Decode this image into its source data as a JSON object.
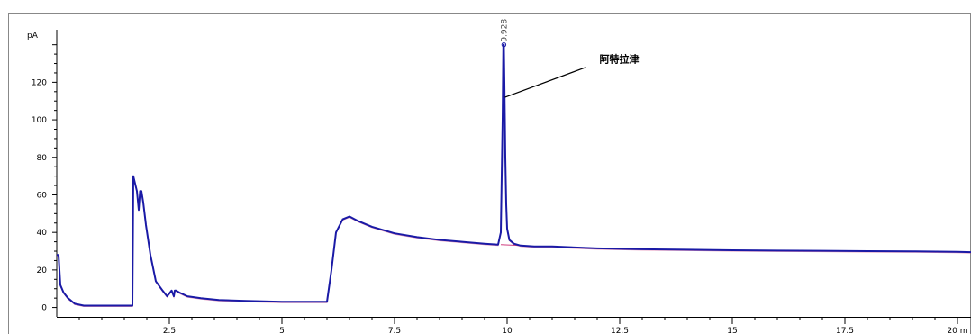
{
  "chart_data": {
    "type": "line",
    "ylabel": "pA",
    "xunit": "m",
    "xlim": [
      0,
      20.3
    ],
    "ylim": [
      -5,
      148
    ],
    "grid": false,
    "y_ticks": [
      0,
      20,
      40,
      60,
      80,
      100,
      120
    ],
    "y_tick_labels": [
      "0",
      "20",
      "40",
      "60",
      "80",
      "100",
      "120"
    ],
    "x_ticks": [
      2.5,
      5,
      7.5,
      10,
      12.5,
      15,
      17.5,
      20
    ],
    "x_tick_labels": [
      "2.5",
      "5",
      "7.5",
      "10",
      "12.5",
      "15",
      "17.5",
      "20"
    ],
    "peak_label": "9.928",
    "annotation": "阿特拉津",
    "colors": {
      "signal": "#1a1aa6",
      "baseline": "#d04080",
      "axis": "#000000",
      "frame": "#888888"
    },
    "series": [
      {
        "x": [
          0.0,
          0.04,
          0.08,
          0.15,
          0.25,
          0.4,
          0.6,
          1.0,
          1.5,
          1.68,
          1.7,
          1.72,
          1.78,
          1.82,
          1.85,
          1.88,
          1.92,
          1.98,
          2.08,
          2.2,
          2.35,
          2.45,
          2.55,
          2.6,
          2.62,
          2.65,
          2.72,
          2.9,
          3.2,
          3.6,
          4.2,
          5.0,
          5.6,
          6.0,
          6.1,
          6.2,
          6.35,
          6.5,
          6.7,
          7.0,
          7.5,
          8.0,
          8.5,
          9.0,
          9.5,
          9.8,
          9.86,
          9.9,
          9.915,
          9.928,
          9.94,
          9.96,
          9.98,
          10.0,
          10.05,
          10.15,
          10.3,
          10.6,
          11.0,
          12.0,
          13.0,
          14.0,
          15.0,
          16.0,
          17.0,
          18.0,
          19.0,
          20.0,
          20.3
        ],
        "y": [
          28,
          28,
          12,
          8,
          5,
          2,
          1,
          1,
          1,
          1,
          70,
          68,
          62,
          52,
          62,
          62,
          56,
          44,
          28,
          14,
          9,
          6,
          9,
          6,
          9,
          9,
          8,
          6,
          5,
          4,
          3.5,
          3,
          3,
          3,
          20,
          40,
          47,
          48.5,
          46,
          43,
          39.5,
          37.5,
          36,
          35,
          34,
          33.5,
          40,
          100,
          140,
          140,
          120,
          80,
          55,
          42,
          36,
          34,
          33,
          32.5,
          32.5,
          31.5,
          31,
          30.8,
          30.5,
          30.3,
          30.2,
          30,
          29.9,
          29.7,
          29.5
        ]
      }
    ]
  }
}
